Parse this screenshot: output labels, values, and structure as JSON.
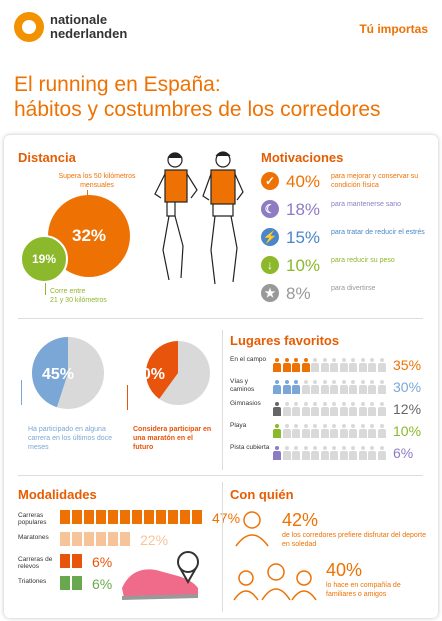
{
  "header": {
    "brand_line1": "nationale",
    "brand_line2": "nederlanden",
    "tagline": "Tú importas"
  },
  "title": {
    "line1": "El running en España:",
    "line2": "hábitos y costumbres de los corredores"
  },
  "colors": {
    "orange": "#ee7203",
    "blue": "#7ba7d6",
    "green": "#8cb82b",
    "gray": "#d9d9d9",
    "purple": "#8e7cc3",
    "red": "#e8540b",
    "peach": "#f7c49a"
  },
  "distancia": {
    "title": "Distancia",
    "big_pct": "32%",
    "big_label": "Supera los 50 kilómetros mensuales",
    "small_pct": "19%",
    "small_label_1": "Corre entre",
    "small_label_2": "21 y 30 kilómetros"
  },
  "motivaciones": {
    "title": "Motivaciones",
    "items": [
      {
        "pct": "40%",
        "text": "para mejorar y conservar su condición física",
        "icon": "check-icon",
        "color": "#ee7203"
      },
      {
        "pct": "18%",
        "text": "para mantenerse sano",
        "icon": "moon-icon",
        "color": "#8e7cc3"
      },
      {
        "pct": "15%",
        "text": "para tratar de reducir el estrés",
        "icon": "lightning-icon",
        "color": "#4a86c8"
      },
      {
        "pct": "10%",
        "text": "para reducir su peso",
        "icon": "down-arrow-icon",
        "color": "#8cb82b"
      },
      {
        "pct": "8%",
        "text": "para divertirse",
        "icon": "star-icon",
        "color": "#999999"
      }
    ]
  },
  "carreras": {
    "pct1": "45%",
    "label1": "Ha participado en alguna carrera en los últimos doce meses",
    "pct2": "40%",
    "label2": "Considera participar en una maratón en el futuro",
    "value1": 0.45,
    "value2": 0.4
  },
  "lugares": {
    "title": "Lugares favoritos",
    "items": [
      {
        "label": "En el campo",
        "pct": "35%",
        "color": "#ee7203",
        "filled": 4
      },
      {
        "label": "Vías y caminos",
        "pct": "30%",
        "color": "#7ba7d6",
        "filled": 3
      },
      {
        "label": "Gimnasios",
        "pct": "12%",
        "color": "#666666",
        "filled": 1
      },
      {
        "label": "Playa",
        "pct": "10%",
        "color": "#8cb82b",
        "filled": 1
      },
      {
        "label": "Pista cubierta",
        "pct": "6%",
        "color": "#8e7cc3",
        "filled": 1
      }
    ]
  },
  "modalidades": {
    "title": "Modalidades",
    "items": [
      {
        "label": "Carreras populares",
        "pct": "47%",
        "color": "#ee7203",
        "bars": 12
      },
      {
        "label": "Maratones",
        "pct": "22%",
        "color": "#f7c49a",
        "bars": 6
      },
      {
        "label": "Carreras de relevos",
        "pct": "6%",
        "color": "#e8540b",
        "bars": 2
      },
      {
        "label": "Triatlones",
        "pct": "6%",
        "color": "#6aa84f",
        "bars": 2
      }
    ]
  },
  "con_quien": {
    "title": "Con quién",
    "pct1": "42%",
    "text1": "de los corredores prefiere disfrutar del deporte en soledad",
    "pct2": "40%",
    "text2": "lo hace en compañía de familiares o amigos"
  }
}
